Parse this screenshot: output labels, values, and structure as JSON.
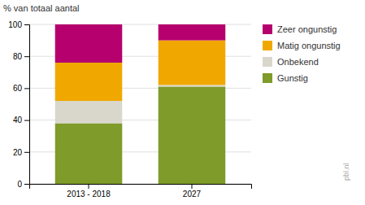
{
  "chart_data": {
    "type": "bar",
    "stacked": true,
    "categories": [
      "2013 - 2018",
      "2027"
    ],
    "series": [
      {
        "name": "Gunstig",
        "color": "#7f9b2a",
        "values": [
          38,
          61
        ]
      },
      {
        "name": "Onbekend",
        "color": "#d9d7cc",
        "values": [
          14,
          1
        ]
      },
      {
        "name": "Matig ongunstig",
        "color": "#f0a800",
        "values": [
          24,
          28
        ]
      },
      {
        "name": "Zeer ongunstig",
        "color": "#b5006e",
        "values": [
          24,
          10
        ]
      }
    ],
    "ylabel": "% van totaal aantal",
    "ylim": [
      0,
      100
    ],
    "yticks": [
      0,
      20,
      40,
      60,
      80,
      100
    ],
    "grid": true,
    "legend": "right",
    "annotations": [
      "pbl.nl"
    ]
  }
}
